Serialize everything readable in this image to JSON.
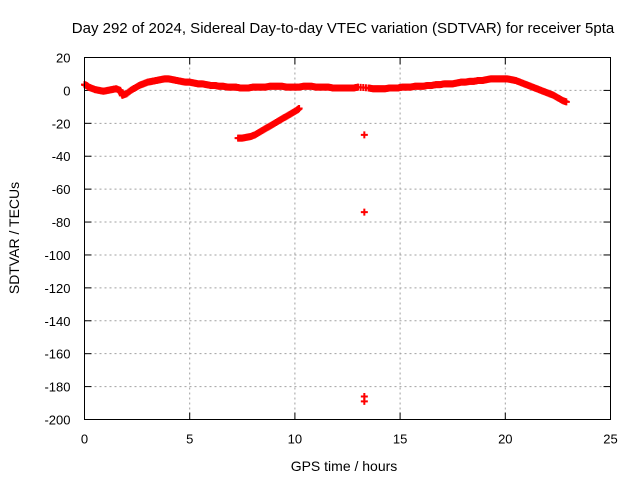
{
  "chart_data": {
    "type": "scatter",
    "title": "Day 292 of 2024, Sidereal Day-to-day VTEC variation (SDTVAR) for receiver 5pta",
    "xlabel": "GPS time / hours",
    "ylabel": "SDTVAR / TECUs",
    "xlim": [
      0,
      25
    ],
    "ylim": [
      -200,
      20
    ],
    "x_ticks": [
      0,
      5,
      10,
      15,
      20,
      25
    ],
    "y_ticks": [
      20,
      0,
      -20,
      -40,
      -60,
      -80,
      -100,
      -120,
      -140,
      -160,
      -180,
      -200
    ],
    "x_tick_labels": [
      "0",
      "5",
      "10",
      "15",
      "20",
      "25"
    ],
    "y_tick_labels": [
      "20",
      "0",
      "-20",
      "-40",
      "-60",
      "-80",
      "-100",
      "-120",
      "-140",
      "-160",
      "-180",
      "-200"
    ],
    "grid": true,
    "marker": "plus",
    "color": "#ff0000",
    "series": [
      {
        "name": "main-track",
        "x": [
          0.0,
          0.1,
          0.2,
          0.3,
          0.5,
          0.7,
          0.9,
          1.1,
          1.3,
          1.5,
          1.7,
          1.8,
          2.0,
          2.2,
          2.4,
          2.6,
          2.8,
          3.0,
          3.2,
          3.4,
          3.6,
          3.8,
          4.0,
          4.2,
          4.4,
          4.6,
          4.8,
          5.0,
          5.2,
          5.4,
          5.6,
          5.8,
          6.0,
          6.2,
          6.4,
          6.6,
          6.8,
          7.0,
          7.2,
          7.4,
          7.6,
          7.8,
          8.0,
          8.2,
          8.4,
          8.6,
          8.8,
          9.0,
          9.2,
          9.4,
          9.6,
          9.8,
          10.0,
          10.2,
          10.4,
          10.6,
          10.8,
          11.0,
          11.2,
          11.4,
          11.6,
          11.8,
          12.0,
          12.2,
          12.4,
          12.6,
          12.8,
          13.0,
          13.5,
          13.7,
          13.9,
          14.1,
          14.3,
          14.5,
          14.7,
          14.9,
          15.1,
          15.3,
          15.5,
          15.7,
          15.9,
          16.1,
          16.3,
          16.5,
          16.7,
          16.9,
          17.1,
          17.3,
          17.5,
          17.7,
          17.9,
          18.1,
          18.3,
          18.5,
          18.7,
          18.9,
          19.1,
          19.3,
          19.5,
          19.7,
          19.9,
          20.1,
          20.3,
          20.5,
          20.7,
          20.9,
          21.1,
          21.3,
          21.5,
          21.7,
          21.9,
          22.1,
          22.3,
          22.5,
          22.7,
          22.9
        ],
        "y": [
          3.5,
          3,
          2,
          1.5,
          0.5,
          0,
          -0.5,
          0,
          0.5,
          1,
          0,
          -3,
          -2,
          0,
          1.5,
          3,
          4,
          5,
          5.5,
          6,
          6.5,
          7,
          7,
          6.5,
          6,
          5.5,
          5,
          5,
          4.5,
          4,
          4,
          3.5,
          3,
          3,
          2.5,
          2.5,
          2,
          2,
          2,
          1.5,
          1.5,
          1.5,
          2,
          2,
          2,
          2,
          2.5,
          2.5,
          2.5,
          2.5,
          2,
          2,
          2,
          2,
          2.5,
          2.5,
          2.5,
          2,
          2,
          2,
          2,
          1.5,
          1.5,
          1.5,
          1.5,
          1.5,
          1.5,
          2,
          1.5,
          1,
          1,
          1,
          1,
          1.5,
          1.5,
          1.5,
          2,
          2,
          2,
          2.5,
          2.5,
          2.5,
          3,
          3,
          3.5,
          3.5,
          4,
          4,
          4,
          4.5,
          5,
          5,
          5.5,
          5.5,
          6,
          6,
          6.5,
          7,
          7,
          7,
          7,
          7,
          6.5,
          6,
          5,
          4,
          3,
          2,
          1,
          0,
          -1,
          -2,
          -3,
          -4.5,
          -6,
          -7
        ]
      },
      {
        "name": "descending-arc",
        "x": [
          7.3,
          7.5,
          7.7,
          7.9,
          8.1,
          8.3,
          8.5,
          8.7,
          8.9,
          9.1,
          9.3,
          9.5,
          9.7,
          9.9,
          10.1,
          10.2
        ],
        "y": [
          -29,
          -29,
          -28.5,
          -28,
          -27,
          -25.5,
          -24,
          -22.5,
          -21,
          -19.5,
          -18,
          -16.5,
          -15,
          -13.5,
          -12,
          -11
        ]
      },
      {
        "name": "outliers",
        "x": [
          13.3,
          13.3,
          13.3,
          13.3
        ],
        "y": [
          -27,
          -74,
          -186,
          -189
        ]
      }
    ]
  }
}
